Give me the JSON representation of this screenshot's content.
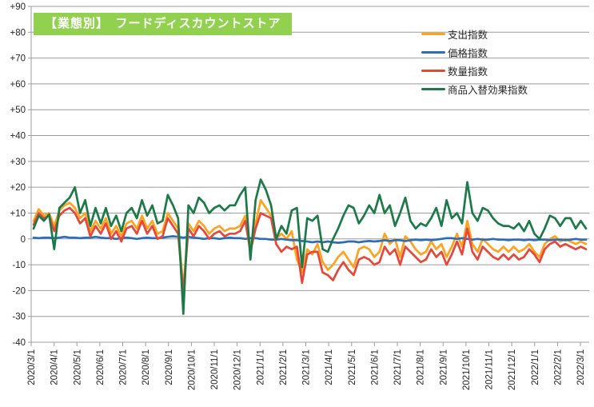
{
  "title": {
    "text": "【業態別】　フードディスカウントストア"
  },
  "colors": {
    "title_bg": "#92D050",
    "title_text": "#FFFFFF",
    "gridline": "#9C9C9C",
    "axis_text": "#262626",
    "background": "#FFFFFF",
    "expenditure": "#FFA21F",
    "price": "#2E6DB5",
    "quantity": "#E6473A",
    "substitution": "#1B7A47"
  },
  "legend": {
    "items": [
      {
        "label": "支出指数",
        "color": "#FFA21F"
      },
      {
        "label": "価格指数",
        "color": "#2E6DB5"
      },
      {
        "label": "数量指数",
        "color": "#E6473A"
      },
      {
        "label": "商品入替効果指数",
        "color": "#1B7A47"
      }
    ]
  },
  "chart_data": {
    "type": "line",
    "title": "【業態別】　フードディスカウントストア",
    "xlabel": "",
    "ylabel": "",
    "ylim": [
      -40,
      90
    ],
    "y_step": 10,
    "y_label_format": "signed",
    "grid": true,
    "legend_position": "top-right",
    "x_unit": "weekly points between monthly ticks",
    "x_tick_labels": [
      "2020/3/1",
      "2020/4/1",
      "2020/5/1",
      "2020/6/1",
      "2020/7/1",
      "2020/8/1",
      "2020/9/1",
      "2020/10/1",
      "2020/11/1",
      "2020/12/1",
      "2021/1/1",
      "2021/2/1",
      "2021/3/1",
      "2021/4/1",
      "2021/5/1",
      "2021/6/1",
      "2021/7/1",
      "2021/8/1",
      "2021/9/1",
      "2021/10/1",
      "2021/11/1",
      "2021/12/1",
      "2022/1/1",
      "2022/2/1",
      "2022/3/1"
    ],
    "series": [
      {
        "name": "支出指数",
        "color": "#FFA21F",
        "values": [
          7,
          11.5,
          9,
          10,
          5,
          11,
          13,
          14,
          12,
          8,
          10,
          3,
          7,
          4,
          8,
          2,
          5,
          1,
          6,
          7,
          4,
          9,
          4,
          7,
          2,
          3,
          10,
          7,
          4,
          -19,
          6,
          3,
          7,
          5,
          2,
          4,
          5,
          3,
          4,
          4,
          5,
          9,
          -3,
          6,
          15,
          12,
          9,
          0,
          2,
          0,
          3,
          -8,
          -13,
          -4,
          -6,
          -2,
          -9,
          -12,
          -10,
          -7,
          -5,
          -8,
          -11,
          -4,
          -3,
          -4,
          -7,
          -5,
          2,
          -2,
          0,
          -7,
          1,
          -1,
          -4,
          -6,
          -5,
          -1,
          -4,
          -2,
          -7,
          -3,
          2,
          -3,
          7,
          -2,
          -5,
          0,
          -2,
          -4,
          -5,
          -3,
          -5,
          -3,
          -5,
          -4,
          -2,
          -5,
          -7,
          -2,
          0,
          1,
          -1,
          0,
          -1,
          -2,
          -1,
          -2
        ]
      },
      {
        "name": "価格指数",
        "color": "#2E6DB5",
        "values": [
          0.5,
          0.3,
          0.5,
          0.5,
          0.3,
          0.5,
          0.8,
          0.5,
          0.5,
          0.3,
          0.5,
          0.5,
          0.8,
          0.5,
          0.3,
          0.3,
          0,
          0.3,
          0.5,
          0.3,
          0,
          0.3,
          0.5,
          0.3,
          0.3,
          0.5,
          0.8,
          1,
          0.8,
          0.5,
          0.8,
          0.5,
          0.3,
          0,
          0.3,
          0.3,
          0,
          0.3,
          0.5,
          0.3,
          0.3,
          0,
          0.3,
          0.3,
          0,
          0,
          -0.3,
          -0.3,
          0,
          -0.3,
          -0.5,
          -0.5,
          -0.8,
          -1,
          -1.3,
          -1,
          -1.3,
          -1,
          -1.3,
          -1.5,
          -1.3,
          -1,
          -1,
          -1.3,
          -1,
          -0.8,
          -1,
          -0.8,
          -0.5,
          -0.8,
          -0.5,
          -0.5,
          -0.8,
          -0.5,
          -0.3,
          -0.5,
          -0.3,
          -0.5,
          -0.3,
          0,
          0.3,
          0.3,
          0,
          0.3,
          0,
          -0.3,
          0,
          -0.3,
          -0.3,
          0,
          -0.3,
          -0.3,
          -0.5,
          -0.3,
          -0.3,
          -0.5,
          -0.3,
          -0.5,
          -0.3,
          -0.3,
          -0.5,
          -0.3,
          -0.3,
          -0.5,
          -0.3,
          0,
          -0.3,
          -0.3
        ]
      },
      {
        "name": "数量指数",
        "color": "#E6473A",
        "values": [
          5.5,
          10,
          8,
          9,
          3,
          9,
          11,
          12,
          10,
          6,
          8,
          1,
          5,
          2,
          6,
          0,
          3,
          -1,
          4,
          5,
          2,
          7,
          2,
          5,
          0,
          1,
          8,
          5,
          2,
          -21,
          4,
          1,
          5,
          3,
          0,
          2,
          3,
          1,
          2,
          2,
          3,
          7,
          -5,
          4,
          10,
          9,
          8,
          -2,
          -5,
          -3,
          -4,
          -3,
          -17,
          -6,
          -5,
          -5,
          -13,
          -14,
          -16,
          -12,
          -9,
          -12,
          -14,
          -8,
          -7,
          -8,
          -10,
          -9,
          -3,
          -6,
          -4,
          -10,
          -3,
          -5,
          -7,
          -9,
          -8,
          -4,
          -7,
          -5,
          -10,
          -6,
          -1,
          -6,
          4,
          -5,
          -8,
          -3,
          -5,
          -7,
          -8,
          -6,
          -8,
          -6,
          -8,
          -7,
          -4,
          -6,
          -9,
          -4,
          -2,
          -1,
          -3,
          -2,
          -3,
          -4,
          -3,
          -4
        ]
      },
      {
        "name": "商品入替効果指数",
        "color": "#1B7A47",
        "values": [
          4,
          9,
          7,
          9.5,
          -4,
          12,
          14,
          16,
          20,
          10,
          15,
          5,
          12,
          6,
          12,
          5,
          9,
          3,
          10,
          12,
          8,
          15,
          9,
          13,
          6,
          7,
          17,
          13,
          8,
          -29,
          13,
          10,
          16,
          14,
          10,
          12,
          13,
          11,
          13,
          13,
          17,
          20,
          -8,
          15,
          23,
          19,
          13,
          0,
          5,
          2,
          11,
          12,
          -11,
          8,
          7,
          9,
          -4,
          -5,
          0,
          4,
          9,
          13,
          12,
          6,
          9,
          13,
          10,
          17,
          10,
          13,
          5,
          10,
          16,
          7,
          4,
          6,
          5,
          8,
          12,
          5,
          15,
          8,
          10,
          6,
          22,
          10,
          7,
          12,
          11,
          8,
          6,
          5,
          5,
          4,
          6,
          3,
          7,
          2,
          0,
          4,
          9,
          8,
          5,
          8,
          8,
          4,
          7,
          4
        ]
      }
    ]
  }
}
